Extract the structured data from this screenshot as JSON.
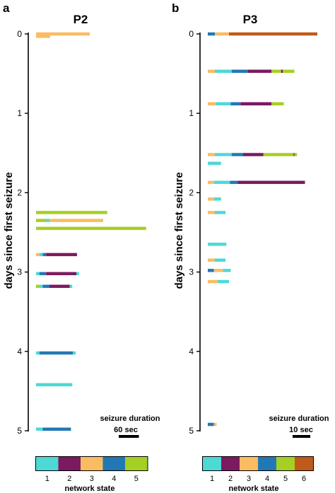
{
  "state_colors": {
    "1": "#4DD9D5",
    "2": "#7B1A5E",
    "3": "#FABC62",
    "4": "#2278B5",
    "5": "#A6CF23",
    "6": "#C05A1A"
  },
  "chart_data": [
    {
      "type": "bar",
      "panel": "a",
      "title": "P2",
      "ylabel": "days since first seizure",
      "yticks": [
        "0",
        "1",
        "2",
        "3",
        "4",
        "5"
      ],
      "ylim": [
        0,
        5
      ],
      "x_unit": "sec",
      "scale_bar": {
        "label": "seizure duration",
        "value_label": "60 sec",
        "seconds": 60
      },
      "legend_title": "network state",
      "legend_states": [
        "1",
        "2",
        "3",
        "4",
        "5"
      ],
      "seizures": [
        {
          "day": 0.0,
          "segments": [
            [
              3,
              160
            ]
          ]
        },
        {
          "day": 0.03,
          "segments": [
            [
              3,
              42
            ]
          ]
        },
        {
          "day": 2.25,
          "segments": [
            [
              5,
              212
            ]
          ]
        },
        {
          "day": 2.35,
          "segments": [
            [
              5,
              30
            ],
            [
              1,
              10
            ],
            [
              3,
              160
            ]
          ]
        },
        {
          "day": 2.45,
          "segments": [
            [
              5,
              328
            ]
          ]
        },
        {
          "day": 2.78,
          "segments": [
            [
              3,
              10
            ],
            [
              1,
              10
            ],
            [
              4,
              10
            ],
            [
              2,
              92
            ]
          ]
        },
        {
          "day": 3.02,
          "segments": [
            [
              1,
              10
            ],
            [
              4,
              20
            ],
            [
              2,
              90
            ],
            [
              1,
              8
            ]
          ]
        },
        {
          "day": 3.18,
          "segments": [
            [
              5,
              10
            ],
            [
              1,
              10
            ],
            [
              4,
              20
            ],
            [
              2,
              60
            ],
            [
              1,
              8
            ]
          ]
        },
        {
          "day": 4.02,
          "segments": [
            [
              1,
              10
            ],
            [
              4,
              100
            ],
            [
              1,
              8
            ]
          ]
        },
        {
          "day": 4.42,
          "segments": [
            [
              1,
              108
            ]
          ]
        },
        {
          "day": 4.98,
          "segments": [
            [
              1,
              20
            ],
            [
              4,
              84
            ]
          ]
        }
      ]
    },
    {
      "type": "bar",
      "panel": "b",
      "title": "P3",
      "ylabel": "days since first seizure",
      "yticks": [
        "0",
        "1",
        "2",
        "3",
        "4",
        "5"
      ],
      "ylim": [
        0,
        5
      ],
      "x_unit": "sec",
      "scale_bar": {
        "label": "seizure duration",
        "value_label": "10 sec",
        "seconds": 10
      },
      "legend_title": "network state",
      "legend_states": [
        "1",
        "2",
        "3",
        "4",
        "5",
        "6"
      ],
      "seizures": [
        {
          "day": 0.0,
          "segments": [
            [
              4,
              4.0
            ],
            [
              3,
              8.0
            ],
            [
              6,
              50.0
            ]
          ]
        },
        {
          "day": 0.47,
          "segments": [
            [
              3,
              4.0
            ],
            [
              1,
              9.5
            ],
            [
              4,
              9.0
            ],
            [
              2,
              13.5
            ],
            [
              5,
              5.5
            ],
            [
              2,
              1.0
            ],
            [
              5,
              6.5
            ]
          ]
        },
        {
          "day": 0.88,
          "segments": [
            [
              3,
              4.5
            ],
            [
              1,
              8.5
            ],
            [
              4,
              5.5
            ],
            [
              2,
              17.5
            ],
            [
              5,
              7.0
            ]
          ]
        },
        {
          "day": 1.52,
          "segments": [
            [
              3,
              4.0
            ],
            [
              1,
              9.5
            ],
            [
              4,
              6.5
            ],
            [
              2,
              11.5
            ],
            [
              5,
              17.0
            ],
            [
              2,
              0.5
            ],
            [
              5,
              1.5
            ]
          ]
        },
        {
          "day": 1.63,
          "segments": [
            [
              1,
              7.5
            ]
          ]
        },
        {
          "day": 1.87,
          "segments": [
            [
              3,
              3.5
            ],
            [
              1,
              9.0
            ],
            [
              4,
              4.5
            ],
            [
              2,
              38.0
            ]
          ]
        },
        {
          "day": 2.08,
          "segments": [
            [
              3,
              3.5
            ],
            [
              1,
              4.0
            ]
          ]
        },
        {
          "day": 2.25,
          "segments": [
            [
              3,
              4.0
            ],
            [
              1,
              6.0
            ]
          ]
        },
        {
          "day": 2.65,
          "segments": [
            [
              1,
              10.5
            ]
          ]
        },
        {
          "day": 2.85,
          "segments": [
            [
              3,
              4.0
            ],
            [
              1,
              6.0
            ]
          ]
        },
        {
          "day": 2.98,
          "segments": [
            [
              4,
              3.5
            ],
            [
              3,
              5.0
            ],
            [
              1,
              4.5
            ]
          ]
        },
        {
          "day": 3.12,
          "segments": [
            [
              3,
              5.5
            ],
            [
              1,
              6.5
            ]
          ]
        },
        {
          "day": 4.92,
          "segments": [
            [
              4,
              3.5
            ],
            [
              3,
              1.5
            ]
          ]
        }
      ]
    }
  ]
}
